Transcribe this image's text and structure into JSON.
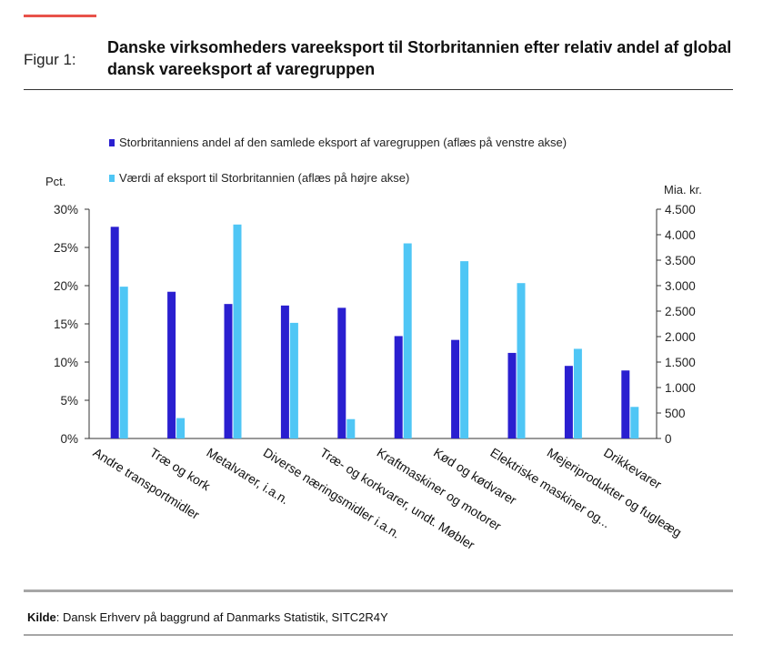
{
  "figure": {
    "label": "Figur 1:",
    "title": "Danske virksomheders vareeksport til Storbritannien efter relativ andel af global dansk vareeksport af varegruppen"
  },
  "source": {
    "label": "Kilde",
    "text": ": Dansk Erhverv på baggrund af Danmarks Statistik, SITC2R4Y"
  },
  "colors": {
    "share": "#2a1fd0",
    "value": "#4fc6f5",
    "accent": "#e8524a"
  },
  "chart_data": {
    "type": "bar",
    "categories": [
      "Andre transportmidler",
      "Træ og kork",
      "Metalvarer, i.a.n.",
      "Diverse næringsmidler i.a.n.",
      "Træ- og korkvarer, undt. Møbler",
      "Kraftmaskiner og motorer",
      "Kød og kødvarer",
      "Elektriske maskiner og...",
      "Mejeriprodukter og fugleæg",
      "Drikkevarer"
    ],
    "series": [
      {
        "name": "Storbritanniens andel af den samlede eksport af varegruppen (aflæs på venstre akse)",
        "axis": "left",
        "values": [
          27.7,
          19.2,
          17.6,
          17.4,
          17.1,
          13.4,
          12.9,
          11.2,
          9.5,
          8.9
        ]
      },
      {
        "name": "Værdi af eksport til Storbritannien (aflæs på højre akse)",
        "axis": "right",
        "values": [
          2980,
          400,
          4200,
          2270,
          380,
          3830,
          3480,
          3050,
          1760,
          620
        ]
      }
    ],
    "y_left": {
      "unit_label": "Pct.",
      "min": 0,
      "max": 30,
      "ticks": [
        "0%",
        "5%",
        "10%",
        "15%",
        "20%",
        "25%",
        "30%"
      ],
      "tick_values": [
        0,
        5,
        10,
        15,
        20,
        25,
        30
      ]
    },
    "y_right": {
      "unit_label": "Mia. kr.",
      "min": 0,
      "max": 4500,
      "ticks": [
        "0",
        "500",
        "1.000",
        "1.500",
        "2.000",
        "2.500",
        "3.000",
        "3.500",
        "4.000",
        "4.500"
      ],
      "tick_values": [
        0,
        500,
        1000,
        1500,
        2000,
        2500,
        3000,
        3500,
        4000,
        4500
      ]
    },
    "grid": false,
    "legend_position": "top"
  }
}
